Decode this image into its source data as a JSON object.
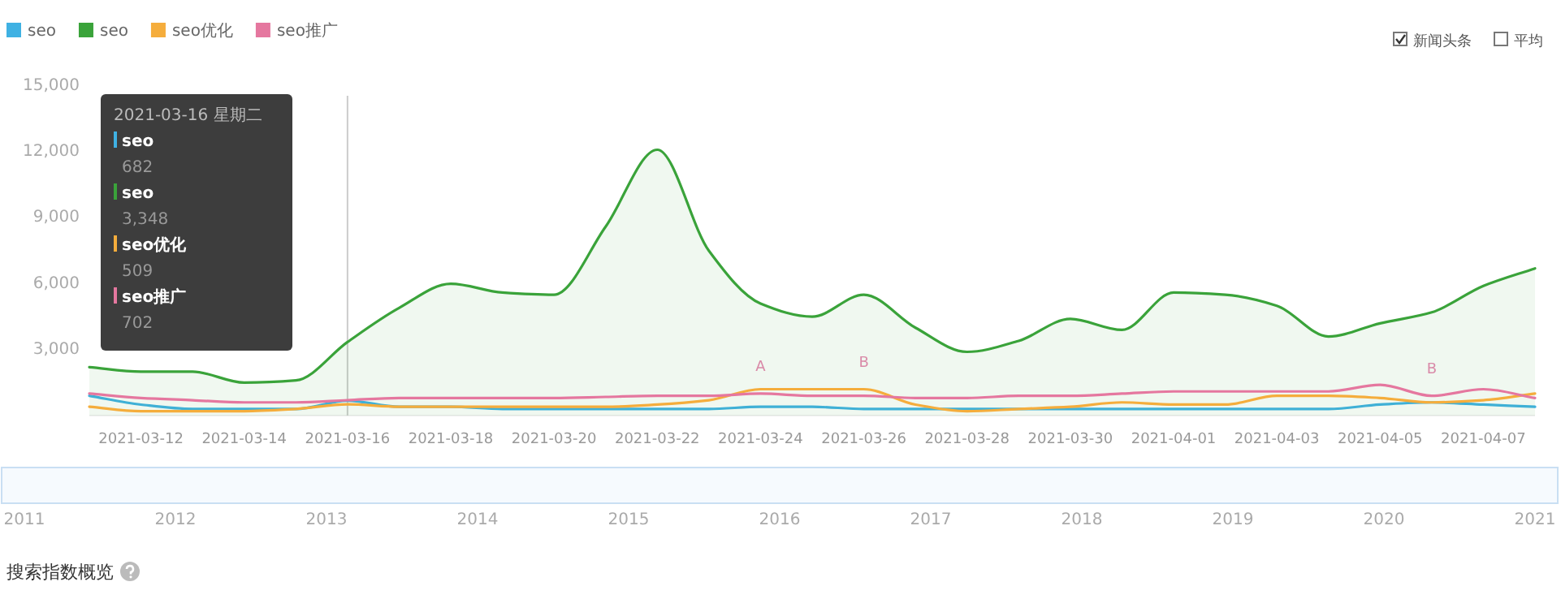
{
  "chart_data": [
    {
      "type": "line",
      "x": [
        "2021-03-11",
        "2021-03-12",
        "2021-03-13",
        "2021-03-14",
        "2021-03-15",
        "2021-03-16",
        "2021-03-17",
        "2021-03-18",
        "2021-03-19",
        "2021-03-20",
        "2021-03-21",
        "2021-03-22",
        "2021-03-23",
        "2021-03-24",
        "2021-03-25",
        "2021-03-26",
        "2021-03-27",
        "2021-03-28",
        "2021-03-29",
        "2021-03-30",
        "2021-03-31",
        "2021-04-01",
        "2021-04-02",
        "2021-04-03",
        "2021-04-04",
        "2021-04-05",
        "2021-04-06",
        "2021-04-07",
        "2021-04-08"
      ],
      "series": [
        {
          "name": "seo",
          "color": "#3fb1e3",
          "type": "line",
          "values": [
            900,
            500,
            300,
            300,
            300,
            682,
            400,
            400,
            300,
            300,
            300,
            300,
            300,
            400,
            400,
            300,
            300,
            300,
            300,
            300,
            300,
            300,
            300,
            300,
            300,
            500,
            600,
            500,
            400
          ]
        },
        {
          "name": "seo",
          "color": "#3aa33a",
          "type": "area",
          "values": [
            2200,
            2000,
            2000,
            1500,
            1600,
            3348,
            4900,
            6000,
            5600,
            5500,
            8600,
            12100,
            7500,
            5100,
            4500,
            5500,
            4000,
            2900,
            3400,
            4400,
            3900,
            5600,
            5500,
            5000,
            3600,
            4200,
            4700,
            5900,
            6700
          ]
        },
        {
          "name": "seo优化",
          "color": "#f5ad3c",
          "type": "line",
          "values": [
            400,
            200,
            200,
            200,
            300,
            509,
            400,
            400,
            400,
            400,
            400,
            500,
            700,
            1200,
            1200,
            1200,
            500,
            200,
            300,
            400,
            600,
            500,
            500,
            900,
            900,
            800,
            600,
            700,
            1000
          ]
        },
        {
          "name": "seo推广",
          "color": "#e5779f",
          "type": "line",
          "values": [
            1000,
            800,
            700,
            600,
            600,
            702,
            800,
            800,
            800,
            800,
            850,
            900,
            900,
            1000,
            900,
            900,
            800,
            800,
            900,
            900,
            1000,
            1100,
            1100,
            1100,
            1100,
            1400,
            900,
            1200,
            800
          ]
        }
      ],
      "xlim": [
        "2021-03-11",
        "2021-04-08"
      ],
      "xticks": [
        "2021-03-12",
        "2021-03-14",
        "2021-03-16",
        "2021-03-18",
        "2021-03-20",
        "2021-03-22",
        "2021-03-24",
        "2021-03-26",
        "2021-03-28",
        "2021-03-30",
        "2021-04-01",
        "2021-04-03",
        "2021-04-05",
        "2021-04-07"
      ],
      "ylim": [
        0,
        15000
      ],
      "yticks": [
        {
          "value": 3000,
          "label": "3,000"
        },
        {
          "value": 6000,
          "label": "6,000"
        },
        {
          "value": 9000,
          "label": "9,000"
        },
        {
          "value": 12000,
          "label": "12,000"
        },
        {
          "value": 15000,
          "label": "15,000"
        }
      ],
      "legend": "top left",
      "grid": false,
      "marker": "none",
      "line_style": "solid",
      "ref_lines": [
        {
          "axis": "x",
          "value": "2021-03-16",
          "color": "#cccccc"
        }
      ],
      "annotations": [
        "2021-03-16 星期二",
        "seo",
        "682",
        "seo",
        "3,348",
        "seo优化",
        "509",
        "seo推广",
        "702",
        "新闻头条",
        "平均",
        {
          "text": "A",
          "x": "2021-03-24",
          "y": 1000
        },
        {
          "text": "B",
          "x": "2021-03-26",
          "y": 1200
        },
        {
          "text": "B",
          "x": "2021-04-06",
          "y": 900
        }
      ],
      "x2lim": [
        2011,
        2021
      ],
      "x2ticks": [
        2011,
        2012,
        2013,
        2014,
        2015,
        2016,
        2017,
        2018,
        2019,
        2020,
        2021
      ]
    },
    {
      "type": "other",
      "annotations": [
        "搜索指数概览"
      ]
    }
  ]
}
